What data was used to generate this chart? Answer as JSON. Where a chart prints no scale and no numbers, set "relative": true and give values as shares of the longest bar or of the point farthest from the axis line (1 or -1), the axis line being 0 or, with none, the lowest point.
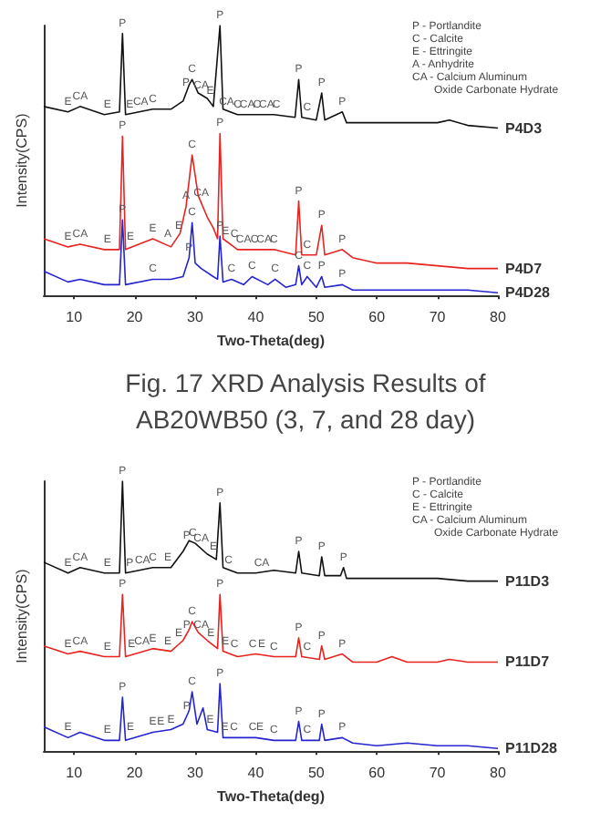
{
  "chart_data": [
    {
      "type": "line",
      "title": "Fig. 17 XRD Analysis Results of AB20WB50 (3, 7, and 28 day)",
      "xlabel": "Two-Theta(deg)",
      "ylabel": "Intensity(CPS)",
      "relative": true,
      "xlim": [
        5,
        80
      ],
      "xticks": [
        10,
        20,
        30,
        40,
        50,
        60,
        70,
        80
      ],
      "grid": false,
      "legend": false,
      "marker": "none",
      "line_style": "solid",
      "series": [
        {
          "name": "P4D3",
          "color": "#111111",
          "x": [
            5,
            9,
            11,
            15,
            17.5,
            18,
            18.5,
            23,
            26,
            28,
            29,
            29.5,
            30.5,
            32,
            33,
            34.1,
            34.6,
            37,
            40,
            43,
            46.5,
            47.1,
            47.6,
            50,
            50.9,
            51.4,
            54.3,
            55,
            60,
            65,
            70,
            72,
            75,
            80
          ],
          "values": [
            0.7,
            0.68,
            0.7,
            0.67,
            0.68,
            0.97,
            0.67,
            0.69,
            0.69,
            0.72,
            0.78,
            0.8,
            0.75,
            0.73,
            0.7,
            1.0,
            0.69,
            0.67,
            0.67,
            0.67,
            0.66,
            0.8,
            0.66,
            0.65,
            0.75,
            0.65,
            0.68,
            0.64,
            0.64,
            0.64,
            0.64,
            0.65,
            0.63,
            0.62
          ]
        },
        {
          "name": "P4D7",
          "color": "#e8231f",
          "x": [
            5,
            9,
            11,
            15,
            17.5,
            18,
            18.5,
            23,
            26,
            27.5,
            28.5,
            29.5,
            30.5,
            32,
            33,
            33.7,
            34.1,
            34.6,
            37,
            40,
            43,
            46.6,
            47.1,
            47.6,
            50,
            50.9,
            51.4,
            54.3,
            56,
            60,
            65,
            70,
            75,
            80
          ],
          "values": [
            0.21,
            0.18,
            0.19,
            0.17,
            0.17,
            0.59,
            0.17,
            0.21,
            0.18,
            0.23,
            0.33,
            0.52,
            0.37,
            0.29,
            0.25,
            0.21,
            0.6,
            0.21,
            0.17,
            0.17,
            0.17,
            0.15,
            0.35,
            0.15,
            0.15,
            0.26,
            0.15,
            0.17,
            0.14,
            0.12,
            0.12,
            0.11,
            0.1,
            0.1
          ]
        },
        {
          "name": "P4D28",
          "color": "#2424d0",
          "x": [
            5,
            9,
            11,
            15,
            17.5,
            18,
            18.5,
            23,
            26,
            28,
            29,
            29.5,
            30,
            31,
            33,
            33.7,
            34.1,
            34.6,
            36,
            38,
            39.4,
            42,
            43.2,
            45,
            46.6,
            47.1,
            47.6,
            48.5,
            50,
            50.9,
            51.4,
            54.3,
            56,
            60,
            65,
            70,
            75,
            80
          ],
          "values": [
            0.09,
            0.05,
            0.06,
            0.04,
            0.04,
            0.28,
            0.04,
            0.06,
            0.06,
            0.07,
            0.14,
            0.27,
            0.12,
            0.1,
            0.07,
            0.06,
            0.22,
            0.05,
            0.06,
            0.04,
            0.07,
            0.04,
            0.06,
            0.03,
            0.04,
            0.11,
            0.04,
            0.07,
            0.03,
            0.07,
            0.03,
            0.04,
            0.02,
            0.02,
            0.02,
            0.02,
            0.02,
            0.01
          ]
        }
      ],
      "annotations": [
        "P - Portlandite",
        "C - Calcite",
        "E - Ettringite",
        "A - Anhydrite",
        "CA - Calcium Aluminum",
        "Oxide Carbonate Hydrate",
        {
          "text": "E",
          "x": 9,
          "y": 0.68
        },
        {
          "text": "CA",
          "x": 11,
          "y": 0.7
        },
        {
          "text": "E",
          "x": 15.5,
          "y": 0.67
        },
        {
          "text": "P",
          "x": 18,
          "y": 0.97
        },
        {
          "text": "E",
          "x": 19.2,
          "y": 0.67
        },
        {
          "text": "CA",
          "x": 21,
          "y": 0.68
        },
        {
          "text": "C",
          "x": 23,
          "y": 0.69
        },
        {
          "text": "P",
          "x": 28.5,
          "y": 0.75
        },
        {
          "text": "C",
          "x": 29.5,
          "y": 0.8
        },
        {
          "text": "CA",
          "x": 31,
          "y": 0.74
        },
        {
          "text": "E",
          "x": 32.5,
          "y": 0.72
        },
        {
          "text": "P",
          "x": 34.1,
          "y": 1.0
        },
        {
          "text": "CA",
          "x": 35.2,
          "y": 0.68
        },
        {
          "text": "C",
          "x": 37,
          "y": 0.67
        },
        {
          "text": "CA",
          "x": 38.6,
          "y": 0.67
        },
        {
          "text": "C",
          "x": 40.2,
          "y": 0.67
        },
        {
          "text": "CA",
          "x": 41.8,
          "y": 0.67
        },
        {
          "text": "C",
          "x": 43.4,
          "y": 0.67
        },
        {
          "text": "P",
          "x": 47.1,
          "y": 0.8
        },
        {
          "text": "C",
          "x": 48.5,
          "y": 0.66
        },
        {
          "text": "P",
          "x": 50.9,
          "y": 0.75
        },
        {
          "text": "P",
          "x": 54.3,
          "y": 0.68
        },
        {
          "text": "E",
          "x": 9,
          "y": 0.18
        },
        {
          "text": "CA",
          "x": 11,
          "y": 0.19
        },
        {
          "text": "E",
          "x": 15.5,
          "y": 0.17
        },
        {
          "text": "P",
          "x": 18,
          "y": 0.59
        },
        {
          "text": "E",
          "x": 19.3,
          "y": 0.18
        },
        {
          "text": "E",
          "x": 23,
          "y": 0.21
        },
        {
          "text": "A",
          "x": 25.5,
          "y": 0.19
        },
        {
          "text": "E",
          "x": 27.3,
          "y": 0.22
        },
        {
          "text": "A",
          "x": 28.5,
          "y": 0.33
        },
        {
          "text": "C",
          "x": 29.5,
          "y": 0.52
        },
        {
          "text": "CA",
          "x": 31,
          "y": 0.34
        },
        {
          "text": "P",
          "x": 34.1,
          "y": 0.6
        },
        {
          "text": "E",
          "x": 35,
          "y": 0.2
        },
        {
          "text": "C",
          "x": 36.5,
          "y": 0.19
        },
        {
          "text": "CA",
          "x": 38,
          "y": 0.17
        },
        {
          "text": "C",
          "x": 39.8,
          "y": 0.17
        },
        {
          "text": "CA",
          "x": 41.4,
          "y": 0.17
        },
        {
          "text": "C",
          "x": 43,
          "y": 0.17
        },
        {
          "text": "P",
          "x": 47.1,
          "y": 0.35
        },
        {
          "text": "C",
          "x": 48.5,
          "y": 0.15
        },
        {
          "text": "P",
          "x": 50.9,
          "y": 0.26
        },
        {
          "text": "P",
          "x": 54.3,
          "y": 0.17
        },
        {
          "text": "P",
          "x": 18,
          "y": 0.28
        },
        {
          "text": "C",
          "x": 23,
          "y": 0.06
        },
        {
          "text": "P",
          "x": 29,
          "y": 0.14
        },
        {
          "text": "C",
          "x": 29.5,
          "y": 0.27
        },
        {
          "text": "P",
          "x": 34.1,
          "y": 0.22
        },
        {
          "text": "C",
          "x": 36,
          "y": 0.06
        },
        {
          "text": "C",
          "x": 39.4,
          "y": 0.07
        },
        {
          "text": "C",
          "x": 43.2,
          "y": 0.06
        },
        {
          "text": "C",
          "x": 47.1,
          "y": 0.11
        },
        {
          "text": "C",
          "x": 48.5,
          "y": 0.07
        },
        {
          "text": "P",
          "x": 50.9,
          "y": 0.07
        },
        {
          "text": "P",
          "x": 54.3,
          "y": 0.04
        }
      ]
    },
    {
      "type": "line",
      "xlabel": "Two-Theta(deg)",
      "ylabel": "Intensity(CPS)",
      "relative": true,
      "xlim": [
        5,
        80
      ],
      "xticks": [
        10,
        20,
        30,
        40,
        50,
        60,
        70,
        80
      ],
      "grid": false,
      "legend": false,
      "marker": "none",
      "line_style": "solid",
      "series": [
        {
          "name": "P11D3",
          "color": "#111111",
          "x": [
            5,
            9,
            11,
            15,
            17.5,
            18,
            18.5,
            23,
            26,
            28,
            29,
            30,
            32,
            33.5,
            34.1,
            34.6,
            37,
            40,
            43,
            46.6,
            47.1,
            47.6,
            50.5,
            50.9,
            51.4,
            54,
            54.5,
            55,
            60,
            65,
            70,
            75,
            80
          ],
          "values": [
            0.7,
            0.66,
            0.68,
            0.66,
            0.66,
            1.0,
            0.66,
            0.68,
            0.68,
            0.74,
            0.78,
            0.77,
            0.73,
            0.71,
            0.92,
            0.68,
            0.66,
            0.66,
            0.67,
            0.66,
            0.74,
            0.66,
            0.65,
            0.72,
            0.65,
            0.65,
            0.68,
            0.64,
            0.64,
            0.64,
            0.64,
            0.63,
            0.63
          ]
        },
        {
          "name": "P11D7",
          "color": "#e8231f",
          "x": [
            5,
            9,
            11,
            15,
            17.5,
            18,
            18.5,
            23,
            26,
            28,
            29,
            29.5,
            30.5,
            32,
            33.7,
            34.1,
            34.6,
            37,
            40,
            43,
            46.6,
            47.1,
            47.6,
            50.5,
            50.9,
            51.4,
            54.3,
            56,
            60,
            62.5,
            65,
            70,
            72,
            75,
            80
          ],
          "values": [
            0.39,
            0.36,
            0.37,
            0.35,
            0.35,
            0.58,
            0.35,
            0.38,
            0.37,
            0.41,
            0.45,
            0.48,
            0.44,
            0.41,
            0.38,
            0.58,
            0.37,
            0.35,
            0.36,
            0.35,
            0.35,
            0.42,
            0.35,
            0.34,
            0.39,
            0.34,
            0.36,
            0.33,
            0.33,
            0.35,
            0.33,
            0.33,
            0.34,
            0.33,
            0.33
          ]
        },
        {
          "name": "P11D28",
          "color": "#2424d0",
          "x": [
            5,
            9,
            11,
            15,
            17.5,
            18,
            18.5,
            23,
            26,
            28,
            29,
            29.5,
            30.3,
            31.3,
            32,
            33.7,
            34.1,
            34.6,
            37,
            40,
            43,
            46.6,
            47.1,
            47.6,
            50.5,
            50.9,
            51.4,
            54.3,
            56,
            60,
            65,
            70,
            75,
            80
          ],
          "values": [
            0.09,
            0.05,
            0.07,
            0.04,
            0.04,
            0.2,
            0.04,
            0.07,
            0.08,
            0.1,
            0.15,
            0.22,
            0.1,
            0.16,
            0.08,
            0.07,
            0.25,
            0.05,
            0.05,
            0.05,
            0.04,
            0.04,
            0.11,
            0.04,
            0.04,
            0.1,
            0.04,
            0.05,
            0.03,
            0.02,
            0.03,
            0.02,
            0.02,
            0.01
          ]
        }
      ],
      "annotations": [
        "P - Portlandite",
        "C - Calcite",
        "E - Ettringite",
        "CA - Calcium Aluminum",
        "Oxide Carbonate Hydrate",
        {
          "text": "E",
          "x": 9,
          "y": 0.66
        },
        {
          "text": "CA",
          "x": 11,
          "y": 0.68
        },
        {
          "text": "E",
          "x": 15.5,
          "y": 0.66
        },
        {
          "text": "P",
          "x": 18,
          "y": 1.0
        },
        {
          "text": "P",
          "x": 19.2,
          "y": 0.66
        },
        {
          "text": "CA",
          "x": 21.3,
          "y": 0.67
        },
        {
          "text": "C",
          "x": 23,
          "y": 0.68
        },
        {
          "text": "E",
          "x": 25.5,
          "y": 0.68
        },
        {
          "text": "P",
          "x": 28.6,
          "y": 0.76
        },
        {
          "text": "C",
          "x": 29.6,
          "y": 0.77
        },
        {
          "text": "CA",
          "x": 31,
          "y": 0.75
        },
        {
          "text": "E",
          "x": 33,
          "y": 0.72
        },
        {
          "text": "P",
          "x": 34.1,
          "y": 0.92
        },
        {
          "text": "C",
          "x": 35.5,
          "y": 0.67
        },
        {
          "text": "CA",
          "x": 41,
          "y": 0.66
        },
        {
          "text": "P",
          "x": 47.1,
          "y": 0.74
        },
        {
          "text": "P",
          "x": 50.9,
          "y": 0.72
        },
        {
          "text": "P",
          "x": 54.5,
          "y": 0.68
        },
        {
          "text": "E",
          "x": 9,
          "y": 0.36
        },
        {
          "text": "CA",
          "x": 11,
          "y": 0.37
        },
        {
          "text": "E",
          "x": 15.5,
          "y": 0.35
        },
        {
          "text": "P",
          "x": 18,
          "y": 0.58
        },
        {
          "text": "E",
          "x": 19.5,
          "y": 0.36
        },
        {
          "text": "CA",
          "x": 21.2,
          "y": 0.37
        },
        {
          "text": "E",
          "x": 23,
          "y": 0.38
        },
        {
          "text": "E",
          "x": 25.5,
          "y": 0.37
        },
        {
          "text": "E",
          "x": 27.3,
          "y": 0.4
        },
        {
          "text": "P",
          "x": 28.6,
          "y": 0.43
        },
        {
          "text": "C",
          "x": 29.5,
          "y": 0.48
        },
        {
          "text": "CA",
          "x": 31,
          "y": 0.43
        },
        {
          "text": "E",
          "x": 32.6,
          "y": 0.4
        },
        {
          "text": "P",
          "x": 34.1,
          "y": 0.58
        },
        {
          "text": "E",
          "x": 35,
          "y": 0.37
        },
        {
          "text": "C",
          "x": 36.5,
          "y": 0.36
        },
        {
          "text": "C",
          "x": 39.5,
          "y": 0.36
        },
        {
          "text": "E",
          "x": 41,
          "y": 0.36
        },
        {
          "text": "C",
          "x": 43,
          "y": 0.35
        },
        {
          "text": "P",
          "x": 47.1,
          "y": 0.42
        },
        {
          "text": "C",
          "x": 48.5,
          "y": 0.35
        },
        {
          "text": "P",
          "x": 50.9,
          "y": 0.39
        },
        {
          "text": "P",
          "x": 54.3,
          "y": 0.36
        },
        {
          "text": "E",
          "x": 9,
          "y": 0.05
        },
        {
          "text": "E",
          "x": 15.5,
          "y": 0.04
        },
        {
          "text": "P",
          "x": 18,
          "y": 0.2
        },
        {
          "text": "E",
          "x": 19.3,
          "y": 0.05
        },
        {
          "text": "E",
          "x": 23,
          "y": 0.07
        },
        {
          "text": "E",
          "x": 24.3,
          "y": 0.07
        },
        {
          "text": "E",
          "x": 26,
          "y": 0.08
        },
        {
          "text": "P",
          "x": 28.6,
          "y": 0.13
        },
        {
          "text": "C",
          "x": 29.5,
          "y": 0.22
        },
        {
          "text": "E",
          "x": 32.5,
          "y": 0.08
        },
        {
          "text": "P",
          "x": 34.1,
          "y": 0.25
        },
        {
          "text": "E",
          "x": 34.9,
          "y": 0.05
        },
        {
          "text": "C",
          "x": 36.4,
          "y": 0.05
        },
        {
          "text": "C",
          "x": 39.5,
          "y": 0.05
        },
        {
          "text": "E",
          "x": 40.7,
          "y": 0.05
        },
        {
          "text": "C",
          "x": 43,
          "y": 0.04
        },
        {
          "text": "P",
          "x": 47.1,
          "y": 0.11
        },
        {
          "text": "C",
          "x": 48.5,
          "y": 0.04
        },
        {
          "text": "P",
          "x": 50.9,
          "y": 0.1
        },
        {
          "text": "P",
          "x": 54.3,
          "y": 0.05
        }
      ]
    }
  ]
}
